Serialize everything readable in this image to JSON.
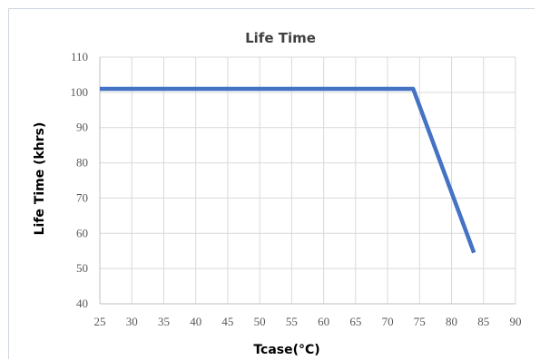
{
  "chart_data": {
    "type": "line",
    "title": "Life Time",
    "xlabel": "Tcase(°C)",
    "ylabel": "Life Time (khrs)",
    "xlim": [
      25,
      90
    ],
    "ylim": [
      40,
      110
    ],
    "xticks": [
      25,
      30,
      35,
      40,
      45,
      50,
      55,
      60,
      65,
      70,
      75,
      80,
      85,
      90
    ],
    "yticks": [
      40,
      50,
      60,
      70,
      80,
      90,
      100,
      110
    ],
    "grid": true,
    "legend": "none",
    "series": [
      {
        "color": "#4472C4",
        "x": [
          25,
          74,
          83.5
        ],
        "y": [
          101,
          101,
          54.5
        ]
      }
    ]
  }
}
